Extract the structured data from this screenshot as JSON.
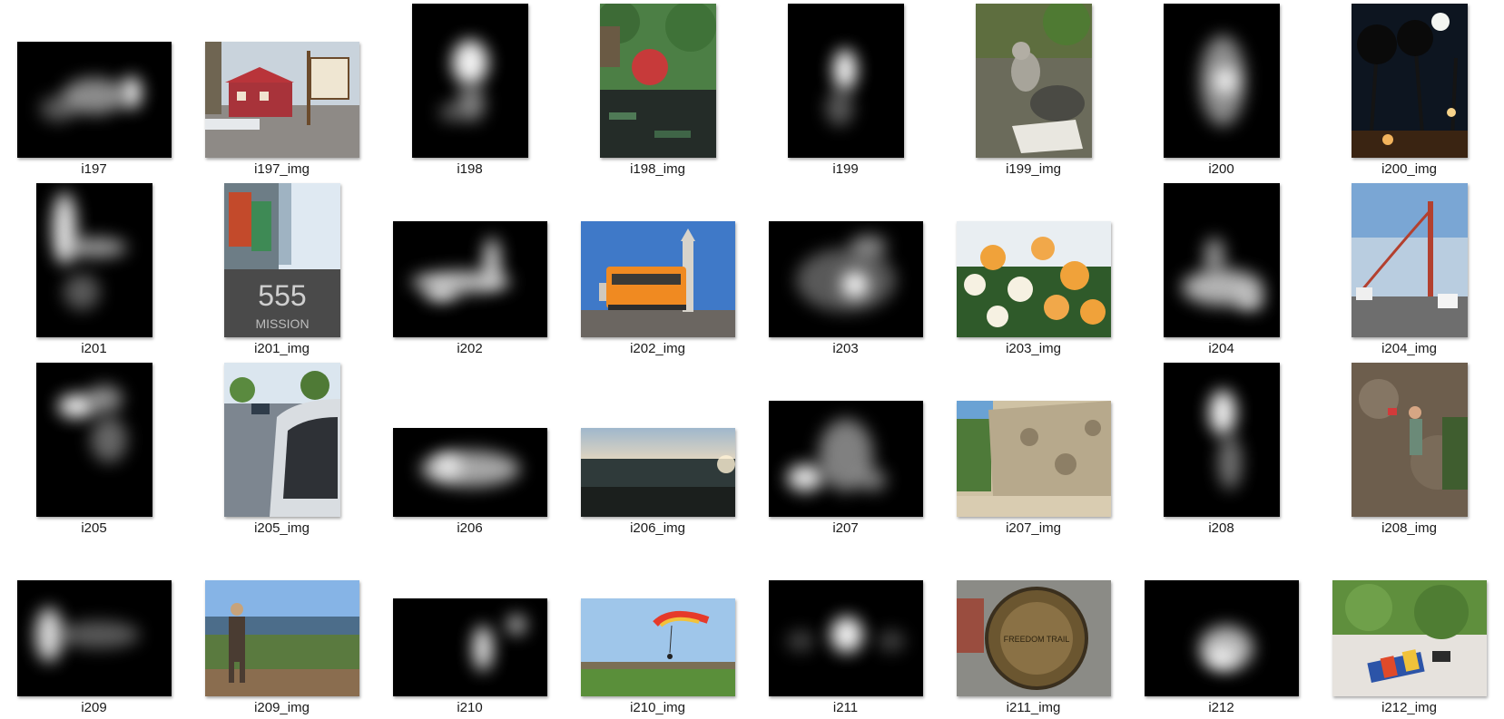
{
  "window": {
    "view": "large icons"
  },
  "items": [
    {
      "label": "i197",
      "kind": "saliency"
    },
    {
      "label": "i197_img",
      "kind": "photo",
      "icon": "house-photo"
    },
    {
      "label": "i198",
      "kind": "saliency"
    },
    {
      "label": "i198_img",
      "kind": "photo",
      "icon": "pond-garden-photo"
    },
    {
      "label": "i199",
      "kind": "saliency"
    },
    {
      "label": "i199_img",
      "kind": "photo",
      "icon": "monkey-photo"
    },
    {
      "label": "i200",
      "kind": "saliency"
    },
    {
      "label": "i200_img",
      "kind": "photo",
      "icon": "palm-night-photo"
    },
    {
      "label": "i201",
      "kind": "saliency"
    },
    {
      "label": "i201_img",
      "kind": "photo",
      "icon": "555-mission-photo"
    },
    {
      "label": "i202",
      "kind": "saliency"
    },
    {
      "label": "i202_img",
      "kind": "photo",
      "icon": "streetcar-photo"
    },
    {
      "label": "i203",
      "kind": "saliency"
    },
    {
      "label": "i203_img",
      "kind": "photo",
      "icon": "roses-photo"
    },
    {
      "label": "i204",
      "kind": "saliency"
    },
    {
      "label": "i204_img",
      "kind": "photo",
      "icon": "bridge-fog-photo"
    },
    {
      "label": "i205",
      "kind": "saliency"
    },
    {
      "label": "i205_img",
      "kind": "photo",
      "icon": "street-car-mirror-photo"
    },
    {
      "label": "i206",
      "kind": "saliency"
    },
    {
      "label": "i206_img",
      "kind": "photo",
      "icon": "city-sunset-photo"
    },
    {
      "label": "i207",
      "kind": "saliency"
    },
    {
      "label": "i207_img",
      "kind": "photo",
      "icon": "rock-wall-photo"
    },
    {
      "label": "i208",
      "kind": "saliency"
    },
    {
      "label": "i208_img",
      "kind": "photo",
      "icon": "climber-photo"
    },
    {
      "label": "i209",
      "kind": "saliency"
    },
    {
      "label": "i209_img",
      "kind": "photo",
      "icon": "hiker-view-photo"
    },
    {
      "label": "i210",
      "kind": "saliency"
    },
    {
      "label": "i210_img",
      "kind": "photo",
      "icon": "parachute-photo"
    },
    {
      "label": "i211",
      "kind": "saliency"
    },
    {
      "label": "i211_img",
      "kind": "photo",
      "icon": "freedom-trail-plaque-photo"
    },
    {
      "label": "i212",
      "kind": "saliency"
    },
    {
      "label": "i212_img",
      "kind": "photo",
      "icon": "beach-towel-photo"
    }
  ],
  "plaque_text": "FREEDOM TRAIL",
  "sign_text": "555",
  "sign_subtext": "MISSION"
}
